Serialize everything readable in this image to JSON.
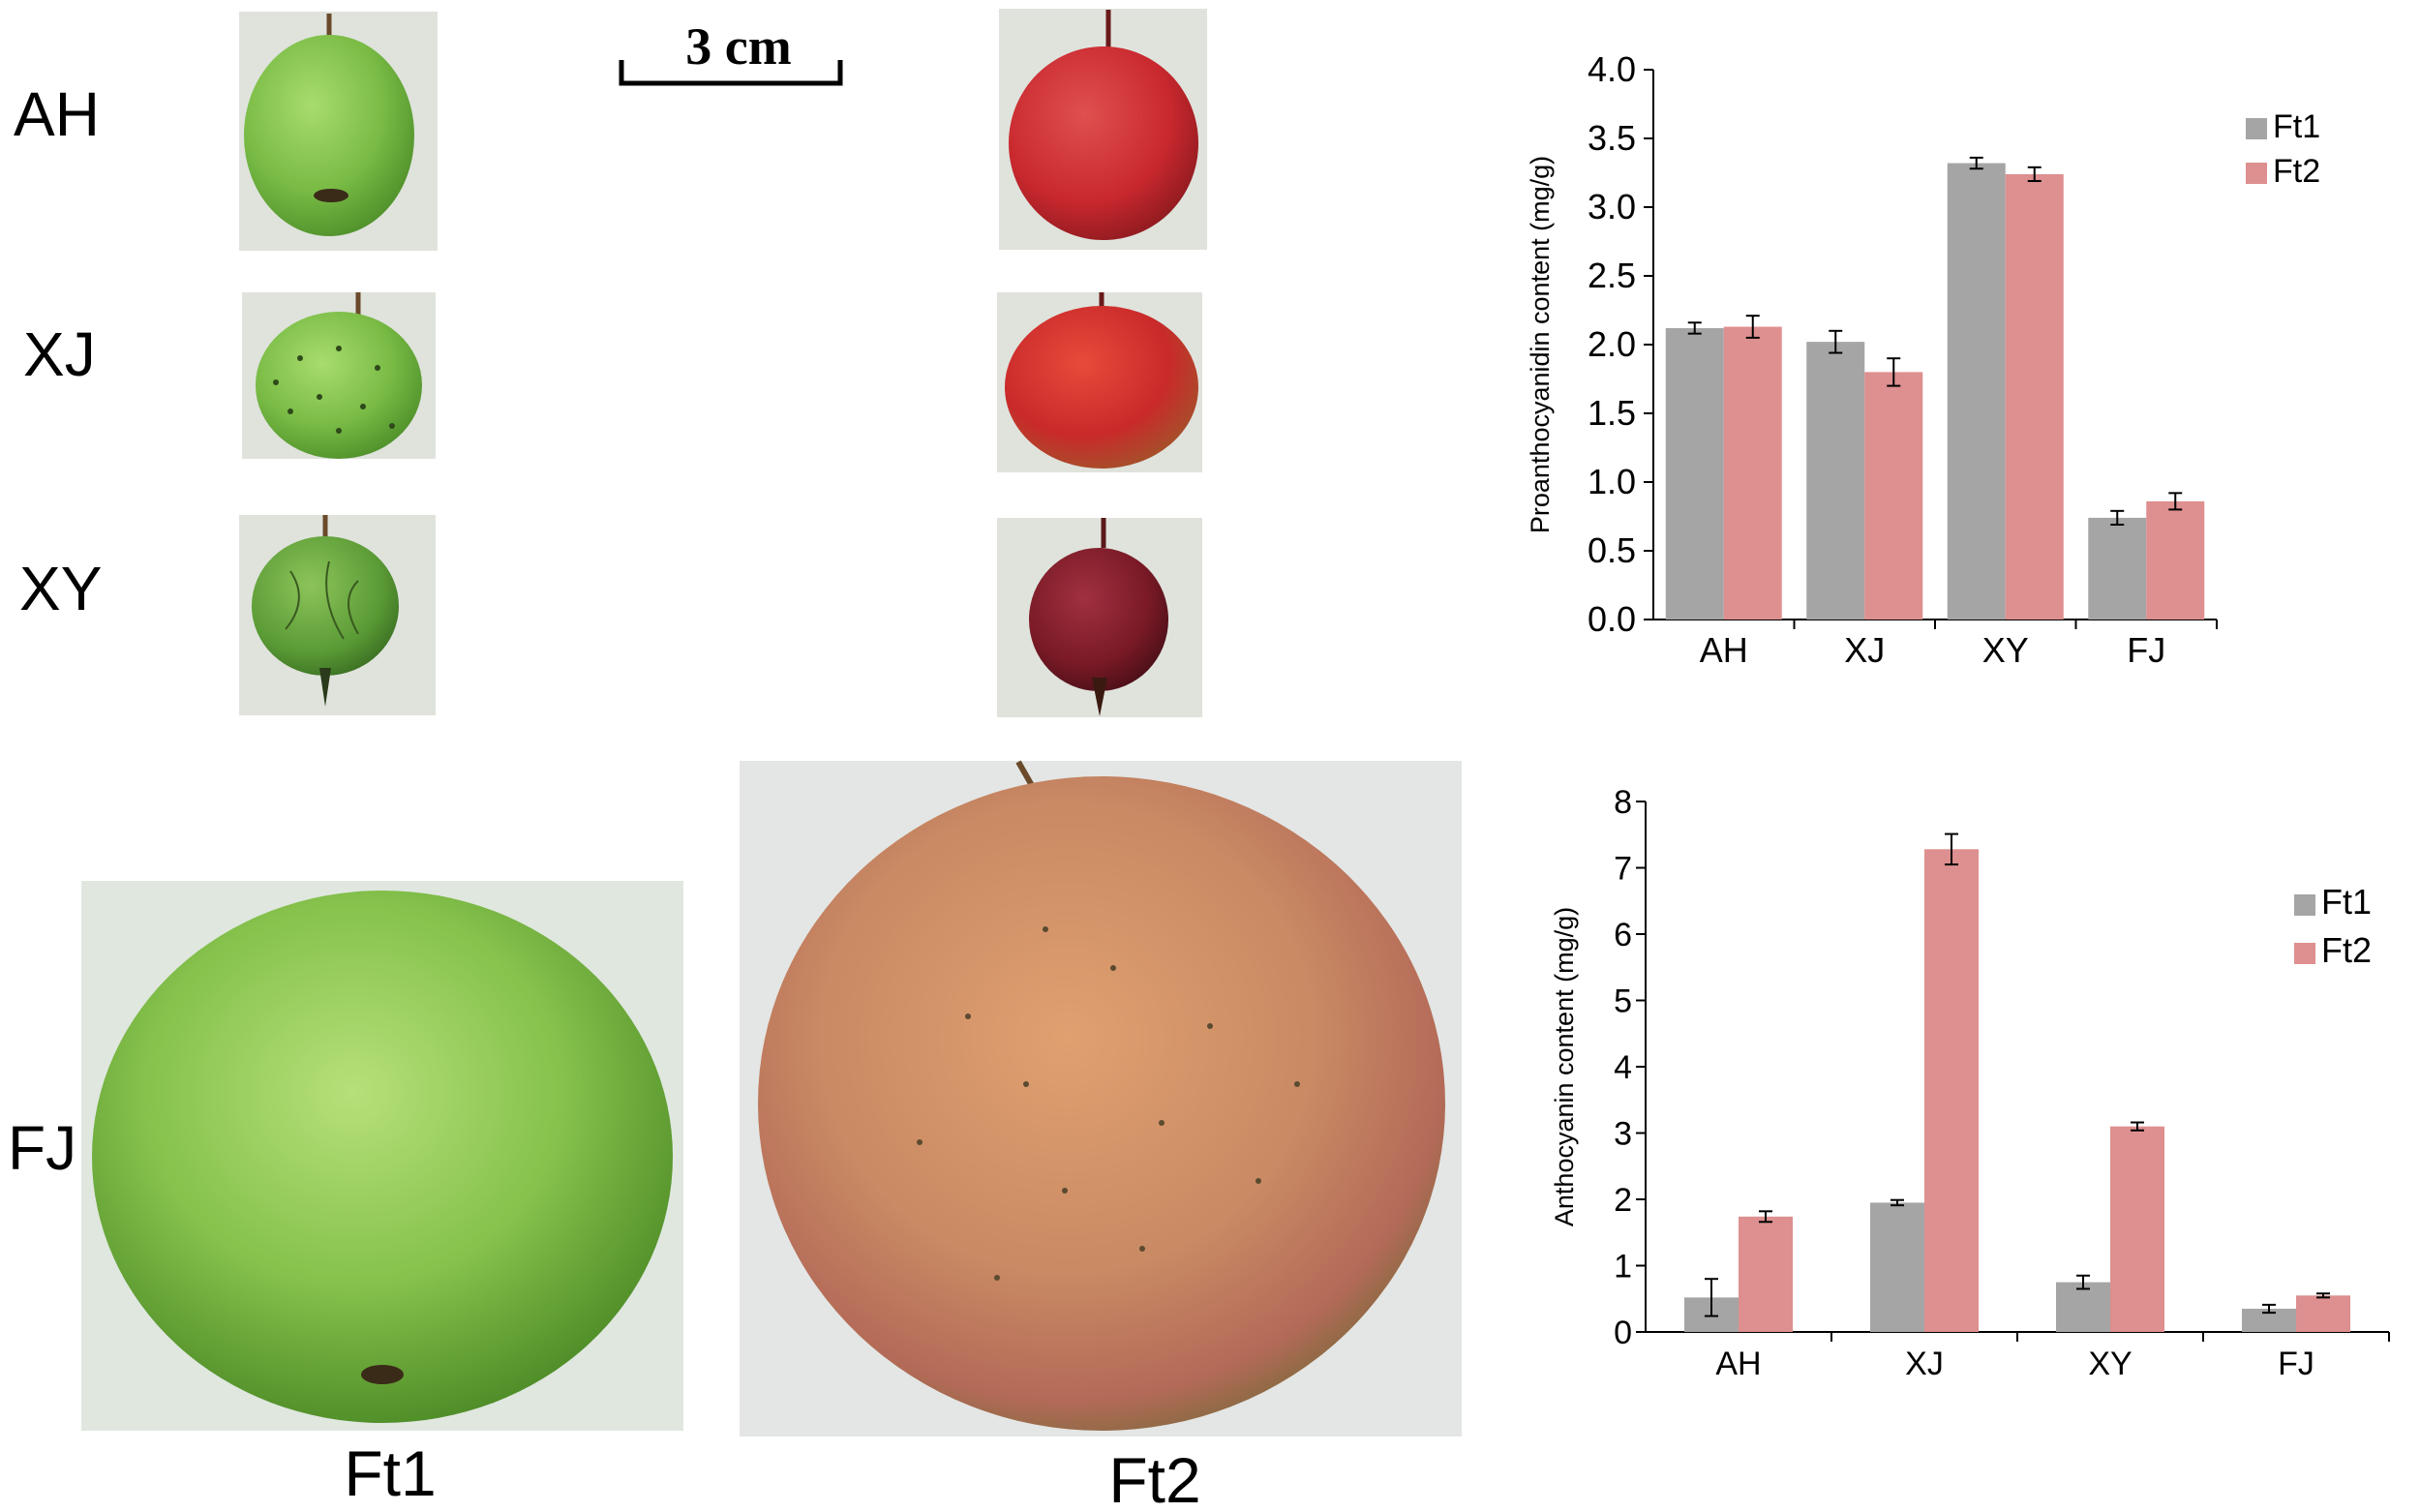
{
  "row_labels": [
    "AH",
    "XJ",
    "XY",
    "FJ"
  ],
  "column_labels": [
    "Ft1",
    "Ft2"
  ],
  "scale_bar": {
    "label": "3 cm"
  },
  "colors": {
    "ft1_series": "#a5a5a5",
    "ft2_series": "#de8f8f",
    "ft1_fruit": "#7cbf4a",
    "ft2_fruit_small": "#c8282e",
    "ft2_fruit_dark": "#7a1a26",
    "ft2_fruit_large": "#c98a64",
    "photo_background": "#d9dcd7"
  },
  "chart_data": [
    {
      "type": "bar",
      "title": "",
      "xlabel": "",
      "ylabel": "Proanthocyanidin content (mg/g)",
      "categories": [
        "AH",
        "XJ",
        "XY",
        "FJ"
      ],
      "series": [
        {
          "name": "Ft1",
          "values": [
            2.12,
            2.02,
            3.32,
            0.74
          ],
          "errors": [
            0.04,
            0.08,
            0.04,
            0.05
          ]
        },
        {
          "name": "Ft2",
          "values": [
            2.13,
            1.8,
            3.24,
            0.86
          ],
          "errors": [
            0.08,
            0.1,
            0.05,
            0.06
          ]
        }
      ],
      "ylim": [
        0,
        4
      ],
      "yticks": [
        0.0,
        0.5,
        1.0,
        1.5,
        2.0,
        2.5,
        3.0,
        3.5,
        4.0
      ],
      "ytick_labels": [
        "0.0",
        "0.5",
        "1.0",
        "1.5",
        "2.0",
        "2.5",
        "3.0",
        "3.5",
        "4.0"
      ],
      "grid": false,
      "legend_position": "top-right"
    },
    {
      "type": "bar",
      "title": "",
      "xlabel": "",
      "ylabel": "Anthocyanin content (mg/g)",
      "categories": [
        "AH",
        "XJ",
        "XY",
        "FJ"
      ],
      "series": [
        {
          "name": "Ft1",
          "values": [
            0.52,
            1.95,
            0.75,
            0.35
          ],
          "errors": [
            0.28,
            0.04,
            0.1,
            0.06
          ]
        },
        {
          "name": "Ft2",
          "values": [
            1.74,
            7.28,
            3.1,
            0.55
          ],
          "errors": [
            0.08,
            0.23,
            0.06,
            0.03
          ]
        }
      ],
      "ylim": [
        0,
        8
      ],
      "yticks": [
        0,
        1,
        2,
        3,
        4,
        5,
        6,
        7,
        8
      ],
      "ytick_labels": [
        "0",
        "1",
        "2",
        "3",
        "4",
        "5",
        "6",
        "7",
        "8"
      ],
      "grid": false,
      "legend_position": "right"
    }
  ]
}
